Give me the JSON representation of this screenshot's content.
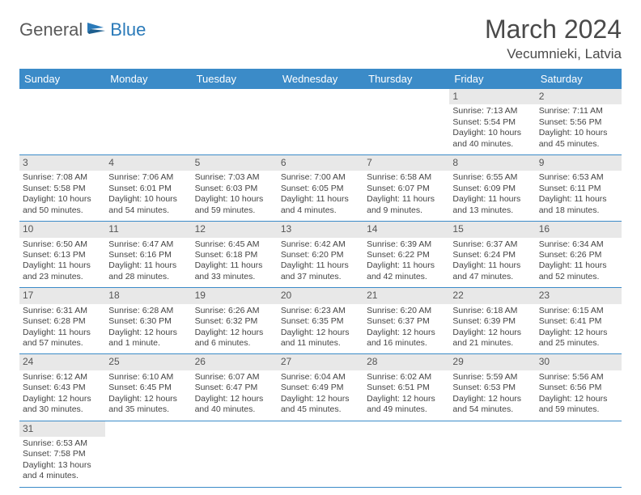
{
  "logo": {
    "part1": "General",
    "part2": "Blue",
    "icon_color": "#2a7ab9",
    "text_color": "#5a5a5a"
  },
  "title": "March 2024",
  "location": "Vecumnieki, Latvia",
  "header_bg": "#3b8bc8",
  "header_fg": "#ffffff",
  "daynum_bg": "#e8e8e8",
  "border_color": "#3b8bc8",
  "columns": [
    "Sunday",
    "Monday",
    "Tuesday",
    "Wednesday",
    "Thursday",
    "Friday",
    "Saturday"
  ],
  "weeks": [
    [
      null,
      null,
      null,
      null,
      null,
      {
        "n": "1",
        "sr": "7:13 AM",
        "ss": "5:54 PM",
        "dl": "10 hours and 40 minutes."
      },
      {
        "n": "2",
        "sr": "7:11 AM",
        "ss": "5:56 PM",
        "dl": "10 hours and 45 minutes."
      }
    ],
    [
      {
        "n": "3",
        "sr": "7:08 AM",
        "ss": "5:58 PM",
        "dl": "10 hours and 50 minutes."
      },
      {
        "n": "4",
        "sr": "7:06 AM",
        "ss": "6:01 PM",
        "dl": "10 hours and 54 minutes."
      },
      {
        "n": "5",
        "sr": "7:03 AM",
        "ss": "6:03 PM",
        "dl": "10 hours and 59 minutes."
      },
      {
        "n": "6",
        "sr": "7:00 AM",
        "ss": "6:05 PM",
        "dl": "11 hours and 4 minutes."
      },
      {
        "n": "7",
        "sr": "6:58 AM",
        "ss": "6:07 PM",
        "dl": "11 hours and 9 minutes."
      },
      {
        "n": "8",
        "sr": "6:55 AM",
        "ss": "6:09 PM",
        "dl": "11 hours and 13 minutes."
      },
      {
        "n": "9",
        "sr": "6:53 AM",
        "ss": "6:11 PM",
        "dl": "11 hours and 18 minutes."
      }
    ],
    [
      {
        "n": "10",
        "sr": "6:50 AM",
        "ss": "6:13 PM",
        "dl": "11 hours and 23 minutes."
      },
      {
        "n": "11",
        "sr": "6:47 AM",
        "ss": "6:16 PM",
        "dl": "11 hours and 28 minutes."
      },
      {
        "n": "12",
        "sr": "6:45 AM",
        "ss": "6:18 PM",
        "dl": "11 hours and 33 minutes."
      },
      {
        "n": "13",
        "sr": "6:42 AM",
        "ss": "6:20 PM",
        "dl": "11 hours and 37 minutes."
      },
      {
        "n": "14",
        "sr": "6:39 AM",
        "ss": "6:22 PM",
        "dl": "11 hours and 42 minutes."
      },
      {
        "n": "15",
        "sr": "6:37 AM",
        "ss": "6:24 PM",
        "dl": "11 hours and 47 minutes."
      },
      {
        "n": "16",
        "sr": "6:34 AM",
        "ss": "6:26 PM",
        "dl": "11 hours and 52 minutes."
      }
    ],
    [
      {
        "n": "17",
        "sr": "6:31 AM",
        "ss": "6:28 PM",
        "dl": "11 hours and 57 minutes."
      },
      {
        "n": "18",
        "sr": "6:28 AM",
        "ss": "6:30 PM",
        "dl": "12 hours and 1 minute."
      },
      {
        "n": "19",
        "sr": "6:26 AM",
        "ss": "6:32 PM",
        "dl": "12 hours and 6 minutes."
      },
      {
        "n": "20",
        "sr": "6:23 AM",
        "ss": "6:35 PM",
        "dl": "12 hours and 11 minutes."
      },
      {
        "n": "21",
        "sr": "6:20 AM",
        "ss": "6:37 PM",
        "dl": "12 hours and 16 minutes."
      },
      {
        "n": "22",
        "sr": "6:18 AM",
        "ss": "6:39 PM",
        "dl": "12 hours and 21 minutes."
      },
      {
        "n": "23",
        "sr": "6:15 AM",
        "ss": "6:41 PM",
        "dl": "12 hours and 25 minutes."
      }
    ],
    [
      {
        "n": "24",
        "sr": "6:12 AM",
        "ss": "6:43 PM",
        "dl": "12 hours and 30 minutes."
      },
      {
        "n": "25",
        "sr": "6:10 AM",
        "ss": "6:45 PM",
        "dl": "12 hours and 35 minutes."
      },
      {
        "n": "26",
        "sr": "6:07 AM",
        "ss": "6:47 PM",
        "dl": "12 hours and 40 minutes."
      },
      {
        "n": "27",
        "sr": "6:04 AM",
        "ss": "6:49 PM",
        "dl": "12 hours and 45 minutes."
      },
      {
        "n": "28",
        "sr": "6:02 AM",
        "ss": "6:51 PM",
        "dl": "12 hours and 49 minutes."
      },
      {
        "n": "29",
        "sr": "5:59 AM",
        "ss": "6:53 PM",
        "dl": "12 hours and 54 minutes."
      },
      {
        "n": "30",
        "sr": "5:56 AM",
        "ss": "6:56 PM",
        "dl": "12 hours and 59 minutes."
      }
    ],
    [
      {
        "n": "31",
        "sr": "6:53 AM",
        "ss": "7:58 PM",
        "dl": "13 hours and 4 minutes."
      },
      null,
      null,
      null,
      null,
      null,
      null
    ]
  ],
  "labels": {
    "sunrise": "Sunrise:",
    "sunset": "Sunset:",
    "daylight": "Daylight:"
  }
}
